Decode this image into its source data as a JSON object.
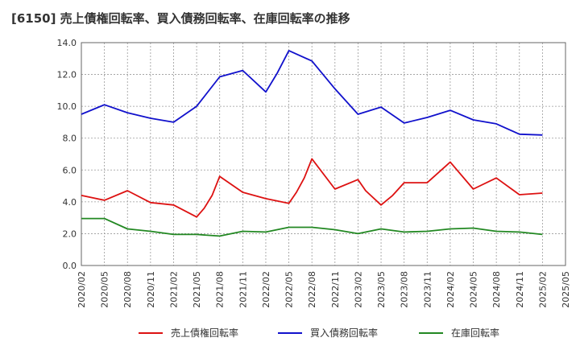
{
  "chart_data": {
    "type": "line",
    "title": "[6150]  売上債権回転率、買入債務回転率、在庫回転率の推移",
    "xlabel": "",
    "ylabel": "",
    "ylim": [
      0,
      14
    ],
    "yticks": [
      "0.0",
      "2.0",
      "4.0",
      "6.0",
      "8.0",
      "10.0",
      "12.0",
      "14.0"
    ],
    "xticks": [
      "2020/02",
      "2020/05",
      "2020/08",
      "2020/11",
      "2021/02",
      "2021/05",
      "2021/08",
      "2021/11",
      "2022/02",
      "2022/05",
      "2022/08",
      "2022/11",
      "2023/02",
      "2023/05",
      "2023/08",
      "2023/11",
      "2024/02",
      "2024/05",
      "2024/08",
      "2024/11",
      "2025/02",
      "2025/05"
    ],
    "grid": true,
    "legend_position": "bottom",
    "series": [
      {
        "name": "売上債権回転率",
        "color": "#dd1111",
        "points": [
          [
            0,
            4.4
          ],
          [
            1,
            4.1
          ],
          [
            2,
            4.7
          ],
          [
            3,
            3.95
          ],
          [
            4,
            3.8
          ],
          [
            5,
            3.05
          ],
          [
            5.33,
            3.6
          ],
          [
            5.67,
            4.4
          ],
          [
            6,
            5.6
          ],
          [
            7,
            4.6
          ],
          [
            8,
            4.2
          ],
          [
            9,
            3.9
          ],
          [
            9.33,
            4.6
          ],
          [
            9.67,
            5.5
          ],
          [
            10,
            6.7
          ],
          [
            11,
            4.8
          ],
          [
            12,
            5.4
          ],
          [
            12.33,
            4.7
          ],
          [
            13,
            3.8
          ],
          [
            13.5,
            4.4
          ],
          [
            14,
            5.2
          ],
          [
            15,
            5.2
          ],
          [
            16,
            6.5
          ],
          [
            17,
            4.8
          ],
          [
            18,
            5.5
          ],
          [
            19,
            4.45
          ],
          [
            20,
            4.55
          ]
        ]
      },
      {
        "name": "買入債務回転率",
        "color": "#1111cc",
        "points": [
          [
            0,
            9.5
          ],
          [
            1,
            10.1
          ],
          [
            2,
            9.6
          ],
          [
            3,
            9.25
          ],
          [
            4,
            9.0
          ],
          [
            5,
            10.0
          ],
          [
            6,
            11.85
          ],
          [
            7,
            12.25
          ],
          [
            8,
            10.9
          ],
          [
            8.5,
            12.1
          ],
          [
            9,
            13.5
          ],
          [
            10,
            12.85
          ],
          [
            11,
            11.1
          ],
          [
            12,
            9.5
          ],
          [
            13,
            9.95
          ],
          [
            14,
            8.95
          ],
          [
            15,
            9.3
          ],
          [
            16,
            9.75
          ],
          [
            17,
            9.15
          ],
          [
            18,
            8.9
          ],
          [
            19,
            8.25
          ],
          [
            20,
            8.2
          ]
        ]
      },
      {
        "name": "在庫回転率",
        "color": "#228822",
        "points": [
          [
            0,
            2.95
          ],
          [
            1,
            2.95
          ],
          [
            2,
            2.3
          ],
          [
            3,
            2.15
          ],
          [
            4,
            1.95
          ],
          [
            5,
            1.95
          ],
          [
            6,
            1.85
          ],
          [
            7,
            2.15
          ],
          [
            8,
            2.1
          ],
          [
            9,
            2.4
          ],
          [
            10,
            2.4
          ],
          [
            11,
            2.25
          ],
          [
            12,
            2.0
          ],
          [
            13,
            2.3
          ],
          [
            14,
            2.1
          ],
          [
            15,
            2.15
          ],
          [
            16,
            2.3
          ],
          [
            17,
            2.35
          ],
          [
            18,
            2.15
          ],
          [
            19,
            2.1
          ],
          [
            20,
            1.95
          ]
        ]
      }
    ]
  }
}
